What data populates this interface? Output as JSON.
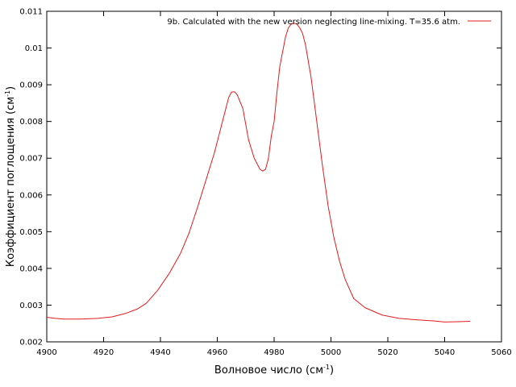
{
  "chart_data": {
    "type": "line",
    "title": "",
    "xlabel": {
      "base": "Волновое число (см",
      "sup": "-1",
      "tail": ")"
    },
    "ylabel": {
      "base": "Коэффициент поглощения (см",
      "sup": "-1",
      "tail": ")"
    },
    "xlim": [
      4900,
      5060
    ],
    "ylim": [
      0.002,
      0.011
    ],
    "xticks": [
      4900,
      4920,
      4940,
      4960,
      4980,
      5000,
      5020,
      5040,
      5060
    ],
    "xtick_labels": [
      "4900",
      "4920",
      "4940",
      "4960",
      "4980",
      "5000",
      "5020",
      "5040",
      "5060"
    ],
    "yticks": [
      0.002,
      0.003,
      0.004,
      0.005,
      0.006,
      0.007,
      0.008,
      0.009,
      0.01,
      0.011
    ],
    "ytick_labels": [
      "0.002",
      "0.003",
      "0.004",
      "0.005",
      "0.006",
      "0.007",
      "0.008",
      "0.009",
      "0.01",
      "0.011"
    ],
    "grid": false,
    "legend_position": "top-right",
    "series": [
      {
        "name": "9b. Calculated with the new version neglecting line-mixing. T=35.6 atm.",
        "color": "#e41a1c",
        "x": [
          4900,
          4903,
          4906,
          4912,
          4918,
          4923,
          4928,
          4932,
          4935,
          4939,
          4943,
          4947,
          4950,
          4953,
          4956,
          4959,
          4961,
          4963,
          4964,
          4965,
          4966,
          4967,
          4969,
          4971,
          4973,
          4975,
          4976,
          4977,
          4978,
          4979,
          4980,
          4981,
          4982,
          4983,
          4984,
          4985,
          4986,
          4987,
          4988,
          4989,
          4990,
          4991,
          4993,
          4995,
          4997,
          4999,
          5001,
          5003,
          5005,
          5008,
          5012,
          5018,
          5024,
          5030,
          5036,
          5040,
          5045,
          5049
        ],
        "y": [
          0.00267,
          0.00264,
          0.00262,
          0.00262,
          0.00264,
          0.00268,
          0.00278,
          0.0029,
          0.00305,
          0.0034,
          0.00385,
          0.0044,
          0.00495,
          0.00565,
          0.0064,
          0.00715,
          0.00775,
          0.00835,
          0.00865,
          0.0088,
          0.00881,
          0.00873,
          0.00835,
          0.0075,
          0.007,
          0.0067,
          0.00665,
          0.0067,
          0.007,
          0.0076,
          0.008,
          0.0088,
          0.0095,
          0.0099,
          0.0103,
          0.01055,
          0.01065,
          0.01068,
          0.01065,
          0.01055,
          0.0104,
          0.0101,
          0.0092,
          0.008,
          0.0068,
          0.0057,
          0.00485,
          0.0042,
          0.0037,
          0.00318,
          0.00293,
          0.00273,
          0.00264,
          0.0026,
          0.00257,
          0.00254,
          0.00255,
          0.00256
        ]
      }
    ]
  }
}
